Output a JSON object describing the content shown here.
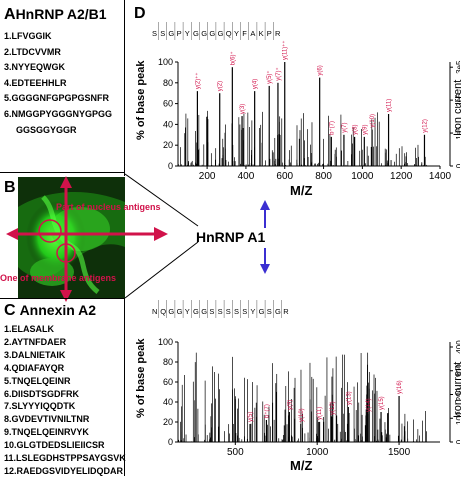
{
  "panel_a": {
    "letter": "A",
    "title": "HnRNP A2/B1",
    "peptides": [
      "1.LFVGGIK",
      "2.LTDCVVMR",
      "3.NYYEQWGK",
      "4.EDTEEHHLR",
      "5.GGGGNFGPGPGSNFR",
      "6.NMGGPYGGGNYGPGG",
      "GGSGGYGGR"
    ]
  },
  "panel_b": {
    "letter": "B",
    "label_nucleus": "Part of nucleus antigens",
    "label_membrane": "One of membrane antigens",
    "target": "HnRNP A1",
    "colors": {
      "arrow": "#d1124a",
      "blue_arrow": "#3b2fd1",
      "fluor": "#22d51d",
      "dark_bg": "#0c2a08"
    }
  },
  "panel_c": {
    "letter": "C",
    "title": "Annexin A2",
    "peptides": [
      "1.ELASALK",
      "2.AYTNFDAER",
      "3.DALNIETAIK",
      "4.QDIAFAYQR",
      "5.TNQELQEINR",
      "6.DIISDTSGDFRK",
      "7.SLYYYIQQDTK",
      "8.GVDEVTIVNILTNR",
      "9.TNQELQEINRVYK",
      "10.GLGTDEDSLIEIICSR",
      "11.LSLEGDHSTPPSAYGSVK",
      "12.RAEDGSVIDYELIDQDAR"
    ]
  },
  "panel_d": {
    "letter": "D",
    "ylabel": "% of base peak",
    "right_label": "Iron current",
    "xlabel": "M/Z",
    "top": {
      "sequence": [
        "S",
        "S",
        "G",
        "P",
        "Y",
        "G",
        "G",
        "G",
        "G",
        "Q",
        "Y",
        "F",
        "A",
        "K",
        "P",
        "R"
      ],
      "y_ticks": [
        "0",
        "20",
        "40",
        "60",
        "80",
        "100"
      ],
      "right_ticks": [
        "0",
        "1e5",
        "2e5",
        "3e5"
      ],
      "x_ticks": [
        "200",
        "400",
        "600",
        "800",
        "1000",
        "1200",
        "1400"
      ],
      "labeled_peaks": [
        {
          "mz": 150,
          "y": 72,
          "label": "y(2)⁺⁺"
        },
        {
          "mz": 265,
          "y": 70,
          "label": "y(2)"
        },
        {
          "mz": 330,
          "y": 95,
          "label": "b(6)⁺"
        },
        {
          "mz": 380,
          "y": 48,
          "label": "y(3)"
        },
        {
          "mz": 445,
          "y": 72,
          "label": "y(4)"
        },
        {
          "mz": 520,
          "y": 77,
          "label": "y(5)⁺"
        },
        {
          "mz": 565,
          "y": 80,
          "label": "y(7)⁺"
        },
        {
          "mz": 600,
          "y": 100,
          "label": "y(11)⁺⁺"
        },
        {
          "mz": 780,
          "y": 85,
          "label": "y(6)"
        },
        {
          "mz": 840,
          "y": 28,
          "label": "b⁺(7)"
        },
        {
          "mz": 905,
          "y": 30,
          "label": "y(7)"
        },
        {
          "mz": 960,
          "y": 28,
          "label": "y(8)"
        },
        {
          "mz": 1010,
          "y": 28,
          "label": "y(9)"
        },
        {
          "mz": 1050,
          "y": 35,
          "label": "y(10)"
        },
        {
          "mz": 1135,
          "y": 50,
          "label": "y(11)"
        },
        {
          "mz": 1320,
          "y": 30,
          "label": "y(12)"
        }
      ]
    },
    "bottom": {
      "sequence": [
        "N",
        "Q",
        "G",
        "G",
        "Y",
        "G",
        "G",
        "S",
        "S",
        "S",
        "S",
        "S",
        "Y",
        "G",
        "S",
        "G",
        "R"
      ],
      "y_ticks": [
        "0",
        "20",
        "40",
        "60",
        "80",
        "100"
      ],
      "right_ticks": [
        "0",
        "100",
        "200",
        "300",
        "400"
      ],
      "x_ticks": [
        "500",
        "1000",
        "1500"
      ],
      "labeled_peaks": [
        {
          "mz": 590,
          "y": 18,
          "label": "y(5)"
        },
        {
          "mz": 690,
          "y": 22,
          "label": "b⁺(7)"
        },
        {
          "mz": 830,
          "y": 30,
          "label": "y(9)"
        },
        {
          "mz": 900,
          "y": 18,
          "label": "y(10)"
        },
        {
          "mz": 1010,
          "y": 20,
          "label": "y(11)"
        },
        {
          "mz": 1090,
          "y": 25,
          "label": "y(12)"
        },
        {
          "mz": 1190,
          "y": 35,
          "label": "y(13)"
        },
        {
          "mz": 1310,
          "y": 28,
          "label": "y(14)"
        },
        {
          "mz": 1390,
          "y": 30,
          "label": "y(15)"
        },
        {
          "mz": 1500,
          "y": 46,
          "label": "y(16)"
        }
      ]
    }
  }
}
